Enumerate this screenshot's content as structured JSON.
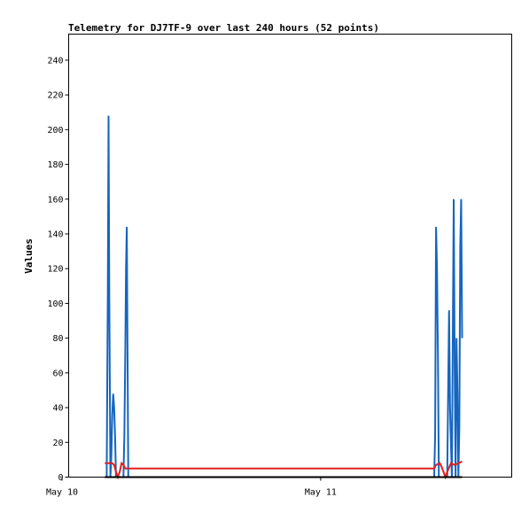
{
  "chart_data": {
    "type": "line",
    "title": "Telemetry for DJ7TF-9 over last 240 hours (52 points)",
    "xlabel": "",
    "ylabel": "Values",
    "ylim": [
      0,
      255
    ],
    "y_ticks": [
      0,
      20,
      40,
      60,
      80,
      100,
      120,
      140,
      160,
      180,
      200,
      220,
      240
    ],
    "x_range_hours": [
      0,
      240
    ],
    "x_ticks": [
      {
        "label": "May 10",
        "hour": 0
      },
      {
        "label": "May 11",
        "hour": 139
      }
    ],
    "grid": false,
    "legend": "none",
    "series": [
      {
        "color": "#1565c0",
        "x": [
          24,
          24.6,
          25,
          25.4,
          26,
          26.5,
          27,
          27.5,
          28,
          28.5,
          29,
          29.3,
          33,
          33.5,
          34,
          34.4,
          34.8,
          35.2,
          35.6,
          200,
          200.5,
          201,
          201.5,
          202,
          202.5,
          203,
          207,
          207.5,
          208,
          208.5,
          209.5,
          210,
          210.5,
          211,
          211.5,
          212,
          212.5,
          213,
          213.5,
          214,
          214.5,
          215
        ],
        "y": [
          0,
          104,
          208,
          104,
          0,
          12,
          36,
          48,
          40,
          24,
          0,
          0,
          0,
          24,
          72,
          120,
          144,
          72,
          0,
          0,
          24,
          144,
          120,
          72,
          0,
          0,
          0,
          48,
          96,
          40,
          0,
          80,
          160,
          64,
          0,
          80,
          48,
          0,
          28,
          132,
          160,
          80
        ]
      },
      {
        "color": "#e02020",
        "x": [
          23,
          27,
          28,
          29,
          30,
          31,
          32,
          33,
          34,
          200,
          201,
          203,
          204,
          205,
          206,
          207,
          209,
          211,
          213,
          215
        ],
        "y": [
          8,
          8,
          7,
          3,
          0,
          3,
          8,
          7,
          5,
          5,
          7,
          8,
          6,
          3,
          0,
          3,
          8,
          7,
          8,
          9
        ]
      },
      {
        "color": "#000000",
        "x": [
          23,
          215
        ],
        "y": [
          0,
          0
        ]
      }
    ]
  }
}
